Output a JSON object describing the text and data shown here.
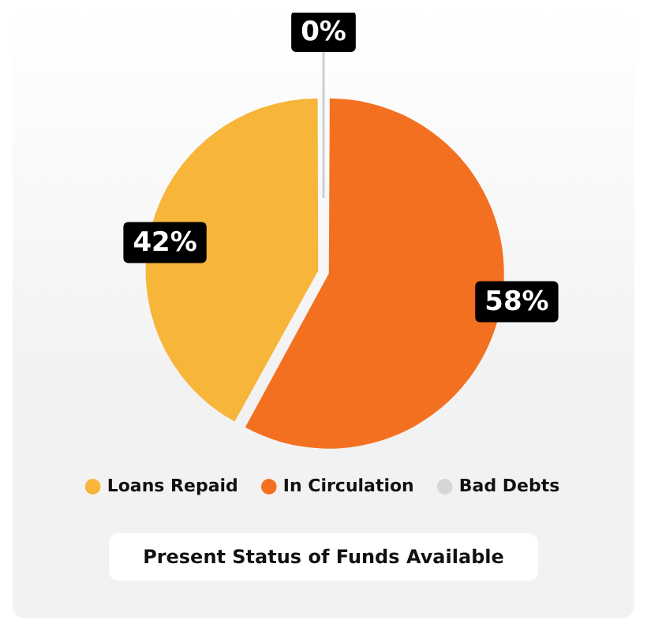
{
  "chart_data": {
    "type": "pie",
    "title": "Present Status of Funds Available",
    "categories": [
      "Loans Repaid",
      "In Circulation",
      "Bad Debts"
    ],
    "values": [
      42,
      58,
      0
    ],
    "colors": [
      "#f7b53a",
      "#f37021",
      "#d6d6d6"
    ],
    "value_labels": [
      "42%",
      "58%",
      "0%"
    ],
    "legend": "bottom"
  }
}
